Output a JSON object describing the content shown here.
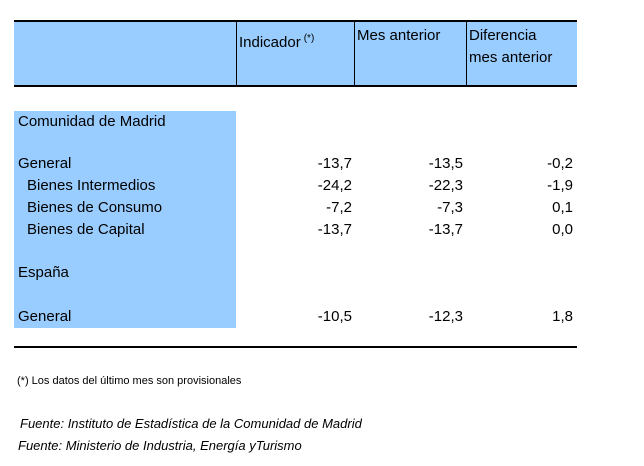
{
  "header": {
    "col_indicador": "Indicador",
    "col_indicador_mark": "(*)",
    "col_mes_anterior": "Mes anterior",
    "col_diferencia_l1": "Diferencia",
    "col_diferencia_l2": "mes anterior"
  },
  "sections": [
    {
      "title": "Comunidad de Madrid",
      "rows": [
        {
          "label": "General",
          "indicador": "-13,7",
          "mes_anterior": "-13,5",
          "diferencia": "-0,2"
        },
        {
          "label": "Bienes Intermedios",
          "indicador": "-24,2",
          "mes_anterior": "-22,3",
          "diferencia": "-1,9"
        },
        {
          "label": "Bienes de Consumo",
          "indicador": "-7,2",
          "mes_anterior": "-7,3",
          "diferencia": "0,1"
        },
        {
          "label": "Bienes de Capital",
          "indicador": "-13,7",
          "mes_anterior": "-13,7",
          "diferencia": "0,0"
        }
      ]
    },
    {
      "title": "España",
      "rows": [
        {
          "label": "General",
          "indicador": "-10,5",
          "mes_anterior": "-12,3",
          "diferencia": "1,8"
        }
      ]
    }
  ],
  "footnote": "(*) Los datos del último mes son provisionales",
  "sources": [
    "Fuente: Instituto de Estadística de la Comunidad de Madrid",
    "Fuente: Ministerio de Industria, Energía yTurismo"
  ]
}
